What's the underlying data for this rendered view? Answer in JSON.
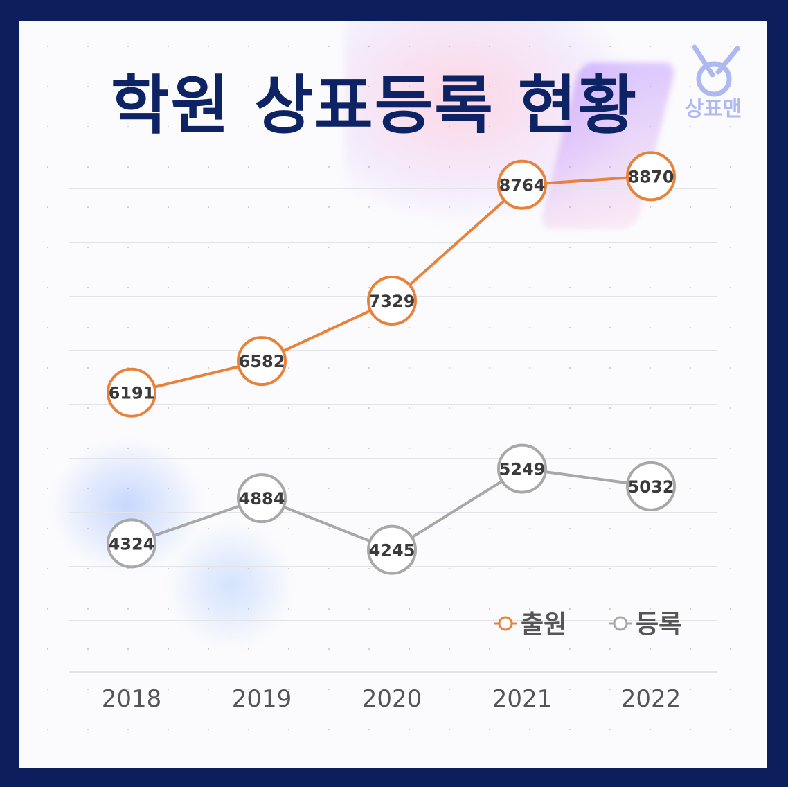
{
  "header": {
    "title": "학원 상표등록 현황",
    "logo_text": "상표맨"
  },
  "colors": {
    "frame": "#0c1f5c",
    "application": "#e8823a",
    "registration": "#a8a8a8",
    "title": "#0d2364"
  },
  "chart_data": {
    "type": "line",
    "title": "학원 상표등록 현황",
    "categories": [
      "2018",
      "2019",
      "2020",
      "2021",
      "2022"
    ],
    "series": [
      {
        "name": "출원",
        "values": [
          6191,
          6582,
          7329,
          8764,
          8870
        ],
        "color": "#e8823a"
      },
      {
        "name": "등록",
        "values": [
          4324,
          4884,
          4245,
          5249,
          5032
        ],
        "color": "#a8a8a8"
      }
    ],
    "ylim": [
      2500,
      10000
    ],
    "grid": true,
    "legend_position": "bottom-right",
    "data_labels": true
  }
}
